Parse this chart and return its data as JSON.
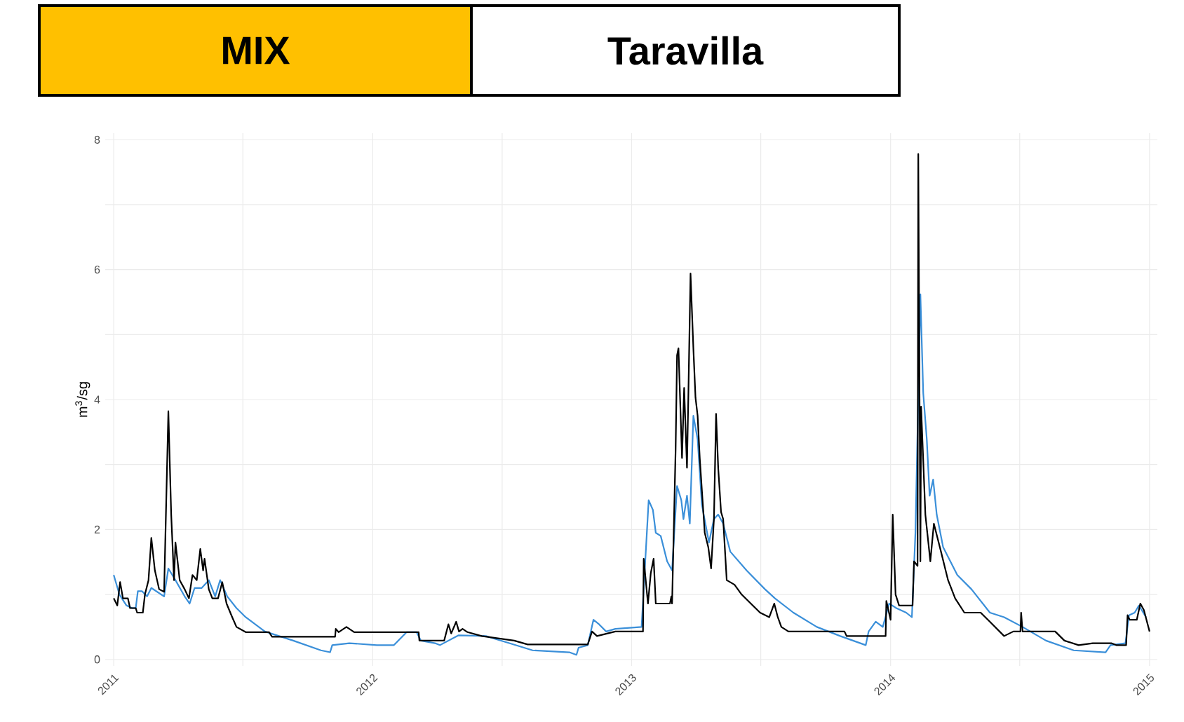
{
  "chart_data": {
    "type": "line",
    "title": "MIX",
    "subtitle": "Taravilla",
    "ylabel": "m$^{3}$/sg",
    "xlim": [
      "2010-12-20",
      "2015-01-12"
    ],
    "ylim": [
      -0.1,
      8.1
    ],
    "xticks": [
      {
        "value": "2011",
        "label": "2011"
      },
      {
        "value": "2011-07-02",
        "label": null
      },
      {
        "value": "2012",
        "label": "2012"
      },
      {
        "value": "2012-07-02",
        "label": null
      },
      {
        "value": "2013",
        "label": "2013"
      },
      {
        "value": "2013-07-02",
        "label": null
      },
      {
        "value": "2014",
        "label": "2014"
      },
      {
        "value": "2014-07-02",
        "label": null
      },
      {
        "value": "2015",
        "label": "2015"
      }
    ],
    "yticks": [
      0,
      {
        "value": 1,
        "label": null
      },
      2,
      {
        "value": 3,
        "label": null
      },
      4,
      {
        "value": 5,
        "label": null
      },
      6,
      {
        "value": 7,
        "label": null
      },
      8
    ],
    "grid": true,
    "series": [
      {
        "color": "#3a8fd9",
        "x": [
          "2011-01-01",
          "2011-01-09",
          "2011-01-19",
          "2011-01-27",
          "2011-02-01",
          "2011-02-04",
          "2011-02-10",
          "2011-02-17",
          "2011-02-23",
          "2011-03-13",
          "2011-03-19",
          "2011-03-29",
          "2011-04-11",
          "2011-04-18",
          "2011-04-25",
          "2011-05-05",
          "2011-05-15",
          "2011-05-24",
          "2011-05-31",
          "2011-06-10",
          "2011-06-23",
          "2011-07-06",
          "2011-08-02",
          "2011-09-11",
          "2011-10-20",
          "2011-11-02",
          "2011-11-05",
          "2011-11-29",
          "2012-01-07",
          "2012-01-31",
          "2012-02-18",
          "2012-03-03",
          "2012-03-09",
          "2012-03-29",
          "2012-04-05",
          "2012-05-01",
          "2012-06-09",
          "2012-07-12",
          "2012-08-14",
          "2012-10-05",
          "2012-10-15",
          "2012-10-18",
          "2012-10-31",
          "2012-11-08",
          "2012-11-16",
          "2012-11-26",
          "2012-12-09",
          "2013-01-15",
          "2013-01-25",
          "2013-01-31",
          "2013-02-04",
          "2013-02-11",
          "2013-02-20",
          "2013-02-27",
          "2013-03-06",
          "2013-03-12",
          "2013-03-15",
          "2013-03-20",
          "2013-03-24",
          "2013-03-29",
          "2013-04-04",
          "2013-04-10",
          "2013-04-20",
          "2013-04-27",
          "2013-05-03",
          "2013-05-10",
          "2013-05-20",
          "2013-06-12",
          "2013-07-08",
          "2013-07-22",
          "2013-08-17",
          "2013-09-19",
          "2013-10-22",
          "2013-11-27",
          "2013-12-01",
          "2013-12-11",
          "2013-12-21",
          "2013-12-30",
          "2014-01-09",
          "2014-01-23",
          "2014-01-31",
          "2014-02-05",
          "2014-02-12",
          "2014-02-16",
          "2014-02-21",
          "2014-02-25",
          "2014-03-02",
          "2014-03-07",
          "2014-03-16",
          "2014-04-05",
          "2014-04-25",
          "2014-05-21",
          "2014-06-10",
          "2014-07-06",
          "2014-08-08",
          "2014-09-16",
          "2014-10-31",
          "2014-11-07",
          "2014-11-28",
          "2014-12-03",
          "2014-12-11",
          "2014-12-17",
          "2014-12-27"
        ],
        "values": [
          1.3,
          1.0,
          0.83,
          0.79,
          0.79,
          1.05,
          1.05,
          0.97,
          1.1,
          0.97,
          1.4,
          1.22,
          0.97,
          0.86,
          1.1,
          1.1,
          1.22,
          0.97,
          1.22,
          0.97,
          0.79,
          0.65,
          0.43,
          0.29,
          0.14,
          0.11,
          0.22,
          0.25,
          0.22,
          0.22,
          0.42,
          0.42,
          0.29,
          0.25,
          0.22,
          0.37,
          0.36,
          0.25,
          0.14,
          0.11,
          0.07,
          0.18,
          0.22,
          0.61,
          0.54,
          0.43,
          0.47,
          0.5,
          2.45,
          2.3,
          1.95,
          1.9,
          1.51,
          1.37,
          2.67,
          2.45,
          2.16,
          2.52,
          2.09,
          3.75,
          3.39,
          2.38,
          1.8,
          2.16,
          2.23,
          2.09,
          1.66,
          1.37,
          1.08,
          0.94,
          0.72,
          0.5,
          0.36,
          0.22,
          0.43,
          0.58,
          0.5,
          0.86,
          0.79,
          0.72,
          0.65,
          1.95,
          5.62,
          4.1,
          3.39,
          2.52,
          2.77,
          2.23,
          1.73,
          1.3,
          1.08,
          0.72,
          0.65,
          0.5,
          0.29,
          0.14,
          0.11,
          0.22,
          0.25,
          0.68,
          0.72,
          0.83,
          0.65
        ]
      },
      {
        "color": "#000000",
        "x": [
          "2011-01-01",
          "2011-01-06",
          "2011-01-10",
          "2011-01-14",
          "2011-01-21",
          "2011-01-24",
          "2011-02-01",
          "2011-02-03",
          "2011-02-11",
          "2011-02-14",
          "2011-02-19",
          "2011-02-23",
          "2011-02-28",
          "2011-03-06",
          "2011-03-13",
          "2011-03-19",
          "2011-03-23",
          "2011-03-27",
          "2011-03-29",
          "2011-04-04",
          "2011-04-11",
          "2011-04-17",
          "2011-04-22",
          "2011-04-28",
          "2011-05-03",
          "2011-05-07",
          "2011-05-09",
          "2011-05-15",
          "2011-05-20",
          "2011-05-28",
          "2011-06-03",
          "2011-06-09",
          "2011-06-17",
          "2011-06-23",
          "2011-07-06",
          "2011-08-08",
          "2011-08-12",
          "2011-11-09",
          "2011-11-10",
          "2011-11-14",
          "2011-11-25",
          "2011-12-06",
          "2012-03-06",
          "2012-03-07",
          "2012-04-11",
          "2012-04-17",
          "2012-04-21",
          "2012-04-28",
          "2012-05-02",
          "2012-05-07",
          "2012-05-14",
          "2012-06-03",
          "2012-07-19",
          "2012-08-07",
          "2012-10-31",
          "2012-11-06",
          "2012-11-13",
          "2012-12-09",
          "2013-01-17",
          "2013-01-18",
          "2013-01-24",
          "2013-01-28",
          "2013-02-01",
          "2013-02-04",
          "2013-02-24",
          "2013-02-26",
          "2013-02-27",
          "2013-03-04",
          "2013-03-06",
          "2013-03-08",
          "2013-03-13",
          "2013-03-16",
          "2013-03-20",
          "2013-03-22",
          "2013-03-25",
          "2013-03-29",
          "2013-04-01",
          "2013-04-04",
          "2013-04-07",
          "2013-04-14",
          "2013-04-19",
          "2013-04-23",
          "2013-04-27",
          "2013-04-30",
          "2013-05-03",
          "2013-05-07",
          "2013-05-10",
          "2013-05-15",
          "2013-05-26",
          "2013-06-05",
          "2013-06-18",
          "2013-07-01",
          "2013-07-14",
          "2013-07-21",
          "2013-07-26",
          "2013-07-31",
          "2013-08-10",
          "2013-10-28",
          "2013-10-31",
          "2013-12-25",
          "2013-12-26",
          "2014-01-01",
          "2014-01-04",
          "2014-01-08",
          "2014-01-13",
          "2014-02-01",
          "2014-02-03",
          "2014-02-08",
          "2014-02-09",
          "2014-02-12",
          "2014-02-13",
          "2014-02-19",
          "2014-02-26",
          "2014-03-03",
          "2014-03-13",
          "2014-03-23",
          "2014-04-02",
          "2014-04-15",
          "2014-05-08",
          "2014-05-21",
          "2014-06-10",
          "2014-06-23",
          "2014-07-03",
          "2014-07-04",
          "2014-07-06",
          "2014-08-21",
          "2014-09-03",
          "2014-09-23",
          "2014-10-13",
          "2014-11-08",
          "2014-11-15",
          "2014-11-29",
          "2014-12-01",
          "2014-12-04",
          "2014-12-14",
          "2014-12-19",
          "2014-12-24",
          "2015-01-01"
        ],
        "values": [
          0.94,
          0.83,
          1.19,
          0.94,
          0.94,
          0.79,
          0.79,
          0.72,
          0.72,
          1.0,
          1.22,
          1.87,
          1.37,
          1.08,
          1.04,
          3.82,
          2.23,
          1.22,
          1.8,
          1.22,
          1.08,
          0.94,
          1.3,
          1.22,
          1.7,
          1.37,
          1.55,
          1.08,
          0.94,
          0.94,
          1.19,
          0.86,
          0.65,
          0.5,
          0.42,
          0.42,
          0.35,
          0.35,
          0.47,
          0.42,
          0.5,
          0.42,
          0.42,
          0.29,
          0.29,
          0.54,
          0.4,
          0.58,
          0.43,
          0.47,
          0.42,
          0.36,
          0.29,
          0.23,
          0.23,
          0.43,
          0.36,
          0.43,
          0.43,
          1.55,
          0.86,
          1.33,
          1.55,
          0.86,
          0.86,
          0.97,
          0.86,
          3.24,
          4.68,
          4.79,
          3.1,
          4.18,
          2.95,
          4.1,
          5.94,
          4.79,
          4.03,
          3.75,
          3.1,
          1.95,
          1.73,
          1.4,
          2.16,
          3.78,
          2.95,
          2.27,
          2.16,
          1.22,
          1.15,
          1.0,
          0.86,
          0.72,
          0.65,
          0.86,
          0.65,
          0.5,
          0.43,
          0.43,
          0.36,
          0.36,
          0.9,
          0.61,
          2.23,
          1.0,
          0.83,
          0.83,
          1.51,
          1.44,
          7.78,
          1.51,
          3.89,
          2.23,
          1.51,
          2.09,
          1.66,
          1.22,
          0.94,
          0.72,
          0.72,
          0.58,
          0.36,
          0.43,
          0.43,
          0.72,
          0.43,
          0.43,
          0.29,
          0.22,
          0.25,
          0.25,
          0.22,
          0.22,
          0.68,
          0.61,
          0.61,
          0.86,
          0.76,
          0.43
        ]
      }
    ]
  }
}
